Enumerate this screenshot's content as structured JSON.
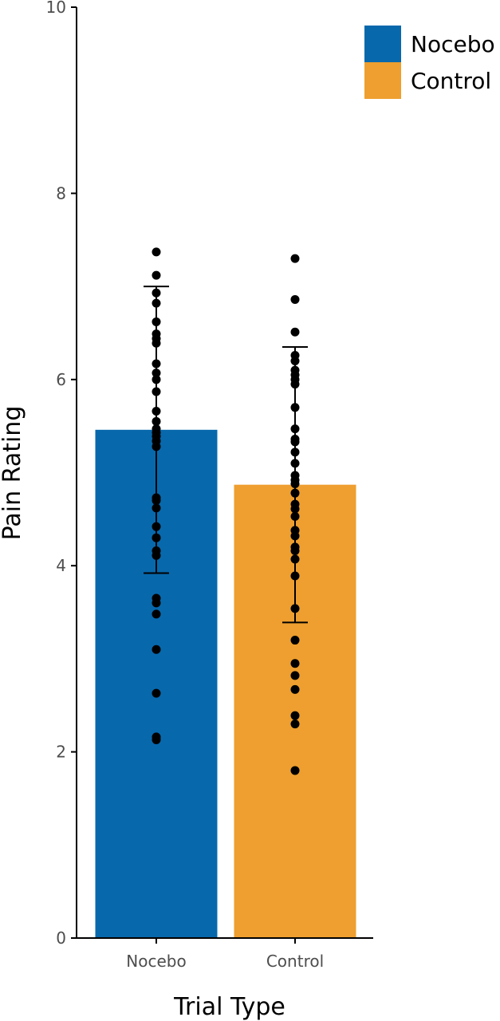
{
  "chart_data": {
    "type": "bar",
    "title": "",
    "xlabel": "Trial Type",
    "ylabel": "Pain Rating",
    "ylim": [
      0,
      10
    ],
    "yticks": [
      0,
      2,
      4,
      6,
      8,
      10
    ],
    "categories": [
      "Nocebo",
      "Control"
    ],
    "values": [
      5.46,
      4.87
    ],
    "error_bars": [
      {
        "category": "Nocebo",
        "lower": 3.92,
        "upper": 7.0
      },
      {
        "category": "Control",
        "lower": 3.39,
        "upper": 6.35
      }
    ],
    "colors": {
      "Nocebo": "#0868ac",
      "Control": "#ee9f2f"
    },
    "points": {
      "Nocebo": [
        7.37,
        7.12,
        6.93,
        6.82,
        6.62,
        6.49,
        6.44,
        6.39,
        6.17,
        6.07,
        6.0,
        5.87,
        5.66,
        5.55,
        5.47,
        5.43,
        5.39,
        5.34,
        5.28,
        4.73,
        4.7,
        4.62,
        4.42,
        4.3,
        4.16,
        4.11,
        3.65,
        3.6,
        3.48,
        3.1,
        2.63,
        2.16,
        2.13
      ],
      "Control": [
        7.3,
        6.86,
        6.51,
        6.26,
        6.2,
        6.1,
        6.05,
        6.0,
        5.95,
        5.7,
        5.47,
        5.36,
        5.33,
        5.22,
        5.1,
        4.97,
        4.92,
        4.88,
        4.78,
        4.66,
        4.61,
        4.53,
        4.38,
        4.32,
        4.2,
        4.16,
        4.07,
        3.89,
        3.54,
        3.2,
        2.95,
        2.82,
        2.67,
        2.39,
        2.3,
        1.8
      ]
    },
    "legend": {
      "placement": "top-right",
      "entries": [
        {
          "name": "Nocebo",
          "color": "#0868ac"
        },
        {
          "name": "Control",
          "color": "#ee9f2f"
        }
      ]
    },
    "grid": false
  }
}
